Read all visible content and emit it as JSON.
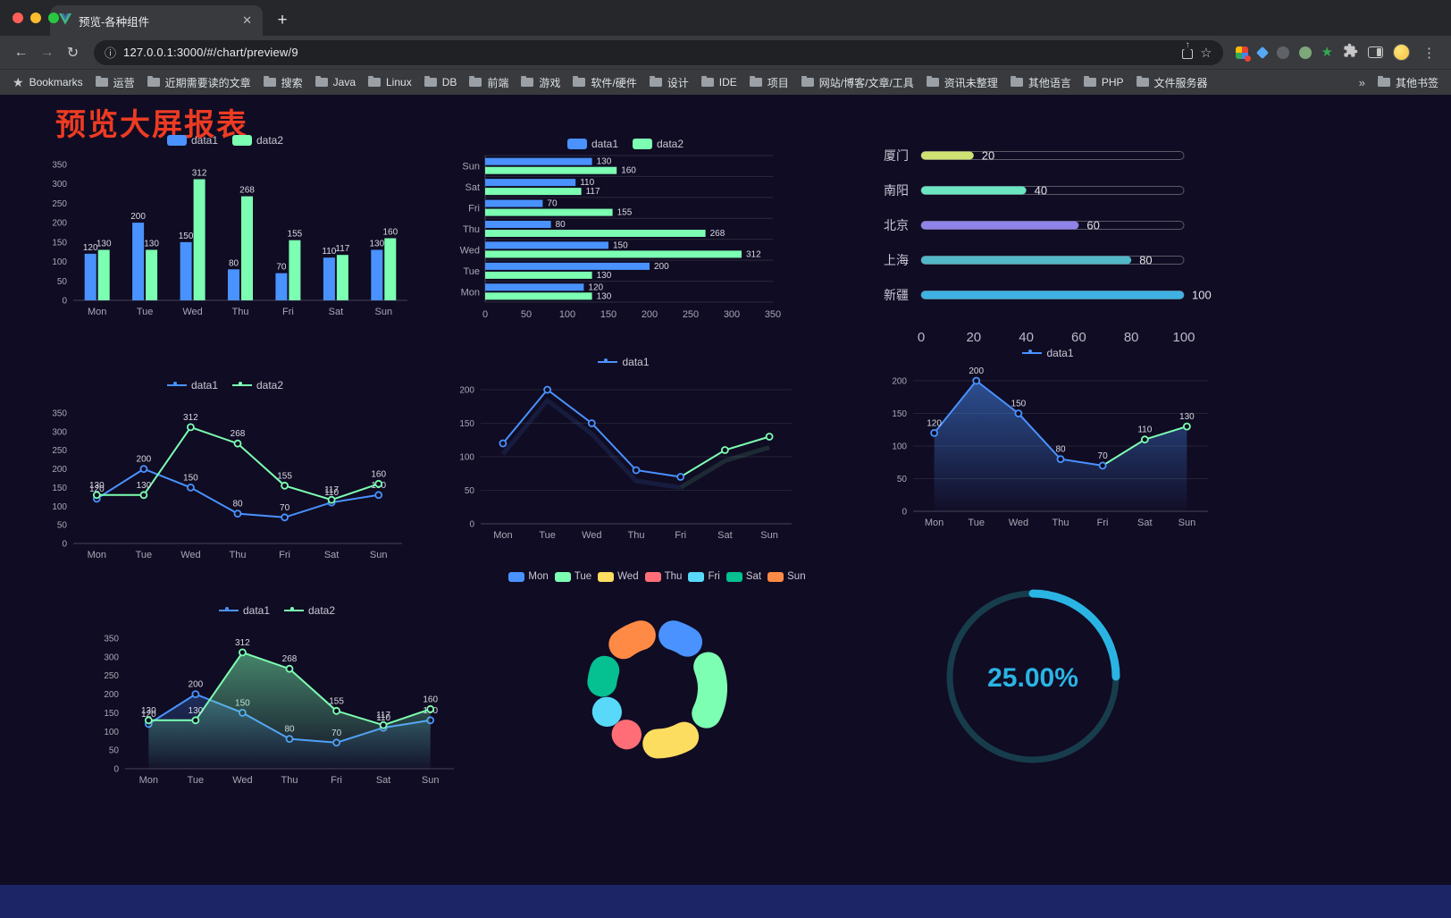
{
  "browser": {
    "tab_title": "预览-各种组件",
    "url": "127.0.0.1:3000/#/chart/preview/9",
    "bookmarks_label": "Bookmarks",
    "bookmarks": [
      "运营",
      "近期需要读的文章",
      "搜索",
      "Java",
      "Linux",
      "DB",
      "前端",
      "游戏",
      "软件/硬件",
      "设计",
      "IDE",
      "项目",
      "网站/博客/文章/工具",
      "资讯未整理",
      "其他语言",
      "PHP",
      "文件服务器"
    ],
    "bookmarks_overflow": "»",
    "other_bookmarks": "其他书签"
  },
  "page": {
    "title": "预览大屏报表",
    "background": "#100c23"
  },
  "chart_data": [
    {
      "id": "bar-grouped",
      "type": "bar",
      "legend_style": "pill",
      "legend_position": "top",
      "value_labels": true,
      "categories": [
        "Mon",
        "Tue",
        "Wed",
        "Thu",
        "Fri",
        "Sat",
        "Sun"
      ],
      "series": [
        {
          "name": "data1",
          "color": "#4992ff",
          "values": [
            120,
            200,
            150,
            80,
            70,
            110,
            130
          ]
        },
        {
          "name": "data2",
          "color": "#7cffb2",
          "values": [
            130,
            130,
            312,
            268,
            155,
            117,
            160
          ]
        }
      ],
      "ylim": [
        0,
        350
      ],
      "yticks": [
        0,
        50,
        100,
        150,
        200,
        250,
        300,
        350
      ]
    },
    {
      "id": "bar-horizontal",
      "type": "hbar",
      "legend_style": "pill",
      "legend_position": "top",
      "value_labels": true,
      "categories": [
        "Mon",
        "Tue",
        "Wed",
        "Thu",
        "Fri",
        "Sat",
        "Sun"
      ],
      "series": [
        {
          "name": "data1",
          "color": "#4992ff",
          "values": [
            120,
            200,
            150,
            80,
            70,
            110,
            130
          ]
        },
        {
          "name": "data2",
          "color": "#7cffb2",
          "values": [
            130,
            130,
            312,
            268,
            155,
            117,
            160
          ]
        }
      ],
      "xlim": [
        0,
        350
      ],
      "xticks": [
        0,
        50,
        100,
        150,
        200,
        250,
        300,
        350
      ]
    },
    {
      "id": "capsule-bars",
      "type": "capsule",
      "legend": false,
      "items": [
        {
          "label": "厦门",
          "value": 20,
          "color": "#cde273"
        },
        {
          "label": "南阳",
          "value": 40,
          "color": "#6be6c1"
        },
        {
          "label": "北京",
          "value": 60,
          "color": "#8f82e8"
        },
        {
          "label": "上海",
          "value": 80,
          "color": "#52b7c6"
        },
        {
          "label": "新疆",
          "value": 100,
          "color": "#3fb1e3"
        }
      ],
      "xlim": [
        0,
        100
      ],
      "xticks": [
        0,
        20,
        40,
        60,
        80,
        100
      ]
    },
    {
      "id": "line-two",
      "type": "line",
      "legend_style": "line",
      "legend_position": "top",
      "value_labels": true,
      "categories": [
        "Mon",
        "Tue",
        "Wed",
        "Thu",
        "Fri",
        "Sat",
        "Sun"
      ],
      "series": [
        {
          "name": "data1",
          "color": "#4992ff",
          "values": [
            120,
            200,
            150,
            80,
            70,
            110,
            130
          ]
        },
        {
          "name": "data2",
          "color": "#7cffb2",
          "values": [
            130,
            130,
            312,
            268,
            155,
            117,
            160
          ]
        }
      ],
      "ylim": [
        0,
        350
      ],
      "yticks": [
        0,
        50,
        100,
        150,
        200,
        250,
        300,
        350
      ]
    },
    {
      "id": "line-single",
      "type": "line",
      "legend_style": "line",
      "legend_position": "top",
      "value_labels": false,
      "grid": true,
      "echo": true,
      "categories": [
        "Mon",
        "Tue",
        "Wed",
        "Thu",
        "Fri",
        "Sat",
        "Sun"
      ],
      "series": [
        {
          "name": "data1",
          "color": "#4992ff",
          "values": [
            120,
            200,
            150,
            80,
            70,
            110,
            130
          ],
          "tail_from": 4,
          "tail_color": "#7cffb2"
        }
      ],
      "ylim": [
        0,
        200
      ],
      "yticks": [
        0,
        50,
        100,
        150,
        200
      ]
    },
    {
      "id": "area-single",
      "type": "line",
      "legend_style": "line",
      "legend_position": "top",
      "value_labels": true,
      "grid": true,
      "categories": [
        "Mon",
        "Tue",
        "Wed",
        "Thu",
        "Fri",
        "Sat",
        "Sun"
      ],
      "series": [
        {
          "name": "data1",
          "color": "#4992ff",
          "values": [
            120,
            200,
            150,
            80,
            70,
            110,
            130
          ],
          "area": true,
          "area_opacity": 0.5,
          "tail_from": 4,
          "tail_color": "#7cffb2"
        }
      ],
      "ylim": [
        0,
        200
      ],
      "yticks": [
        0,
        50,
        100,
        150,
        200
      ]
    },
    {
      "id": "line-area-two",
      "type": "line",
      "legend_style": "line",
      "legend_position": "top",
      "value_labels": true,
      "categories": [
        "Mon",
        "Tue",
        "Wed",
        "Thu",
        "Fri",
        "Sat",
        "Sun"
      ],
      "series": [
        {
          "name": "data1",
          "color": "#4992ff",
          "values": [
            120,
            200,
            150,
            80,
            70,
            110,
            130
          ],
          "area": true,
          "area_opacity": 0.25
        },
        {
          "name": "data2",
          "color": "#7cffb2",
          "values": [
            130,
            130,
            312,
            268,
            155,
            117,
            160
          ],
          "area": true,
          "area_opacity": 0.5
        }
      ],
      "ylim": [
        0,
        350
      ],
      "yticks": [
        0,
        50,
        100,
        150,
        200,
        250,
        300,
        350
      ]
    },
    {
      "id": "donut",
      "type": "pie",
      "legend_style": "pill",
      "legend_position": "top",
      "legend_compact": true,
      "slices": [
        {
          "name": "Mon",
          "value": 120,
          "color": "#4992ff"
        },
        {
          "name": "Tue",
          "value": 200,
          "color": "#7cffb2"
        },
        {
          "name": "Wed",
          "value": 150,
          "color": "#fddd60"
        },
        {
          "name": "Thu",
          "value": 80,
          "color": "#ff6e76"
        },
        {
          "name": "Fri",
          "value": 70,
          "color": "#58d9f9"
        },
        {
          "name": "Sat",
          "value": 110,
          "color": "#05c091"
        },
        {
          "name": "Sun",
          "value": 130,
          "color": "#ff8a45"
        }
      ]
    },
    {
      "id": "gauge",
      "type": "gauge",
      "legend": false,
      "value": 25,
      "display": "25.00%",
      "color": "#2ab4e4",
      "track_color": "#173d4c"
    }
  ]
}
